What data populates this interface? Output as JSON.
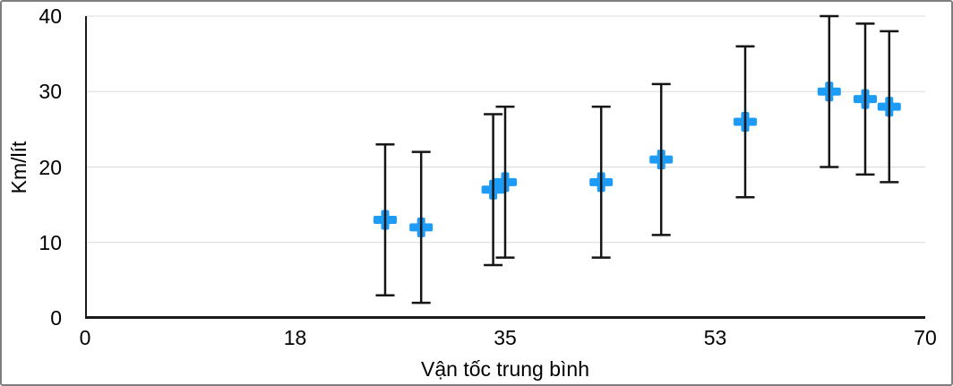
{
  "chart_data": {
    "type": "scatter",
    "title": "",
    "xlabel": "Vận tốc trung bình",
    "ylabel": "Km/lít",
    "xlim": [
      0,
      70
    ],
    "ylim": [
      0,
      40
    ],
    "grid": "horizontal-only",
    "legend": "none",
    "marker": "plus",
    "x_ticks": [
      {
        "value": 0,
        "label": "0"
      },
      {
        "value": 17.5,
        "label": "18"
      },
      {
        "value": 35,
        "label": "35"
      },
      {
        "value": 52.5,
        "label": "53"
      },
      {
        "value": 70,
        "label": "70"
      }
    ],
    "y_ticks": [
      {
        "value": 0,
        "label": "0"
      },
      {
        "value": 10,
        "label": "10"
      },
      {
        "value": 20,
        "label": "20"
      },
      {
        "value": 30,
        "label": "30"
      },
      {
        "value": 40,
        "label": "40"
      }
    ],
    "series": [
      {
        "name": "Km/lít",
        "error_bars": {
          "plus": 10,
          "minus": 10
        },
        "points": [
          {
            "x": 25,
            "y": 13
          },
          {
            "x": 28,
            "y": 12
          },
          {
            "x": 34,
            "y": 17
          },
          {
            "x": 35,
            "y": 18
          },
          {
            "x": 43,
            "y": 18
          },
          {
            "x": 48,
            "y": 21
          },
          {
            "x": 55,
            "y": 26
          },
          {
            "x": 62,
            "y": 30
          },
          {
            "x": 65,
            "y": 29
          },
          {
            "x": 67,
            "y": 28
          }
        ]
      }
    ],
    "colors": {
      "marker": "#1c9cf6",
      "error_bar": "#151515",
      "gridline": "#d9d9d9",
      "axis_line": "#1a1a1a",
      "text": "#000000",
      "background": "#ffffff",
      "frame_border": "#7e7e7e"
    }
  }
}
